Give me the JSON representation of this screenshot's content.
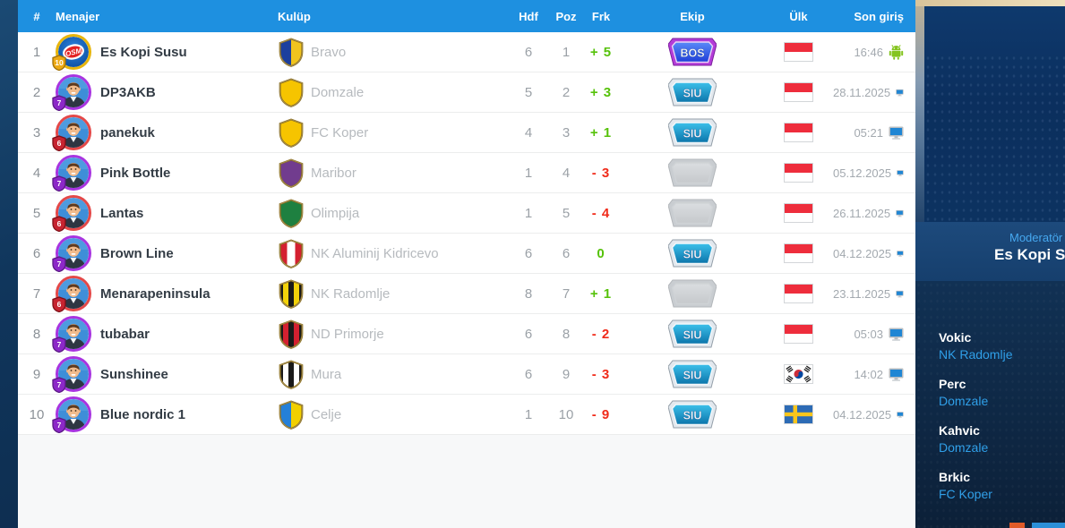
{
  "colors": {
    "accent": "#1e90e0",
    "positive": "#56c20a",
    "negative": "#f02b1a",
    "link": "#2f9fe8"
  },
  "table": {
    "columns": {
      "rank": "#",
      "manager": "Menajer",
      "club": "Kulüp",
      "hdf": "Hdf",
      "poz": "Poz",
      "frk": "Frk",
      "ekip": "Ekip",
      "ulk": "Ülk",
      "son_giris": "Son giriş"
    },
    "rows": [
      {
        "rank": "1",
        "manager": "Es Kopi Susu",
        "level": "10",
        "avatar": "osm",
        "ring": "#e7b50c",
        "club": "Bravo",
        "club_badge": {
          "type": "halves",
          "colors": [
            "#1c3f9e",
            "#f0c41e"
          ]
        },
        "hdf": "6",
        "poz": "1",
        "frk": "+ 5",
        "frk_state": "positive",
        "ekip": "BOS",
        "ekip_style": "bos",
        "flag": "id",
        "son": "16:46",
        "device": "android"
      },
      {
        "rank": "2",
        "manager": "DP3AKB",
        "level": "7",
        "avatar": "face",
        "ring": "#a834e0",
        "club": "Domzale",
        "club_badge": {
          "type": "solid",
          "colors": [
            "#f6c400"
          ]
        },
        "hdf": "5",
        "poz": "2",
        "frk": "+ 3",
        "frk_state": "positive",
        "ekip": "SIU",
        "ekip_style": "siu",
        "flag": "id",
        "son": "28.11.2025",
        "device": "desktop"
      },
      {
        "rank": "3",
        "manager": "panekuk",
        "level": "6",
        "avatar": "face",
        "ring": "#e44848",
        "club": "FC Koper",
        "club_badge": {
          "type": "solid",
          "colors": [
            "#f6c400"
          ]
        },
        "hdf": "4",
        "poz": "3",
        "frk": "+ 1",
        "frk_state": "positive",
        "ekip": "SIU",
        "ekip_style": "siu",
        "flag": "id",
        "son": "05:21",
        "device": "desktop"
      },
      {
        "rank": "4",
        "manager": "Pink Bottle",
        "level": "7",
        "avatar": "face",
        "ring": "#a834e0",
        "club": "Maribor",
        "club_badge": {
          "type": "solid",
          "colors": [
            "#713c8e"
          ]
        },
        "hdf": "1",
        "poz": "4",
        "frk": "- 3",
        "frk_state": "negative",
        "ekip": "",
        "ekip_style": "empty",
        "flag": "id",
        "son": "05.12.2025",
        "device": "desktop"
      },
      {
        "rank": "5",
        "manager": "Lantas",
        "level": "6",
        "avatar": "face",
        "ring": "#e44848",
        "club": "Olimpija",
        "club_badge": {
          "type": "solid",
          "colors": [
            "#1e8040"
          ]
        },
        "hdf": "1",
        "poz": "5",
        "frk": "- 4",
        "frk_state": "negative",
        "ekip": "",
        "ekip_style": "empty",
        "flag": "id",
        "son": "26.11.2025",
        "device": "desktop"
      },
      {
        "rank": "6",
        "manager": "Brown Line",
        "level": "7",
        "avatar": "face",
        "ring": "#a834e0",
        "club": "NK Aluminij Kidricevo",
        "club_badge": {
          "type": "stripe3",
          "colors": [
            "#d42030",
            "#ffffff"
          ]
        },
        "hdf": "6",
        "poz": "6",
        "frk": "0",
        "frk_state": "positive",
        "ekip": "SIU",
        "ekip_style": "siu",
        "flag": "id",
        "son": "04.12.2025",
        "device": "desktop"
      },
      {
        "rank": "7",
        "manager": "Menarapeninsula",
        "level": "6",
        "avatar": "face",
        "ring": "#e44848",
        "club": "NK Radomlje",
        "club_badge": {
          "type": "stripes",
          "colors": [
            "#1a1a1a",
            "#f2d20a"
          ]
        },
        "hdf": "8",
        "poz": "7",
        "frk": "+ 1",
        "frk_state": "positive",
        "ekip": "",
        "ekip_style": "empty",
        "flag": "id",
        "son": "23.11.2025",
        "device": "desktop"
      },
      {
        "rank": "8",
        "manager": "tubabar",
        "level": "7",
        "avatar": "face",
        "ring": "#a834e0",
        "club": "ND Primorje",
        "club_badge": {
          "type": "stripes",
          "colors": [
            "#1a1a1a",
            "#d42030"
          ]
        },
        "hdf": "6",
        "poz": "8",
        "frk": "- 2",
        "frk_state": "negative",
        "ekip": "SIU",
        "ekip_style": "siu",
        "flag": "id",
        "son": "05:03",
        "device": "desktop"
      },
      {
        "rank": "9",
        "manager": "Sunshinee",
        "level": "7",
        "avatar": "face",
        "ring": "#a834e0",
        "club": "Mura",
        "club_badge": {
          "type": "stripes",
          "colors": [
            "#1a1a1a",
            "#ffffff"
          ]
        },
        "hdf": "6",
        "poz": "9",
        "frk": "- 3",
        "frk_state": "negative",
        "ekip": "SIU",
        "ekip_style": "siu",
        "flag": "kr",
        "son": "14:02",
        "device": "desktop"
      },
      {
        "rank": "10",
        "manager": "Blue nordic 1",
        "level": "7",
        "avatar": "face",
        "ring": "#a834e0",
        "club": "Celje",
        "club_badge": {
          "type": "halves",
          "colors": [
            "#2580d8",
            "#f2d000"
          ]
        },
        "hdf": "1",
        "poz": "10",
        "frk": "- 9",
        "frk_state": "negative",
        "ekip": "SIU",
        "ekip_style": "siu",
        "flag": "se",
        "son": "04.12.2025",
        "device": "desktop"
      }
    ]
  },
  "sidebar": {
    "moderator_label": "Moderatör",
    "moderator_name": "Es Kopi Susu",
    "players": [
      {
        "name": "Vokic",
        "club": "NK Radomlje"
      },
      {
        "name": "Perc",
        "club": "Domzale"
      },
      {
        "name": "Kahvic",
        "club": "Domzale"
      },
      {
        "name": "Brkic",
        "club": "FC Koper"
      }
    ]
  }
}
